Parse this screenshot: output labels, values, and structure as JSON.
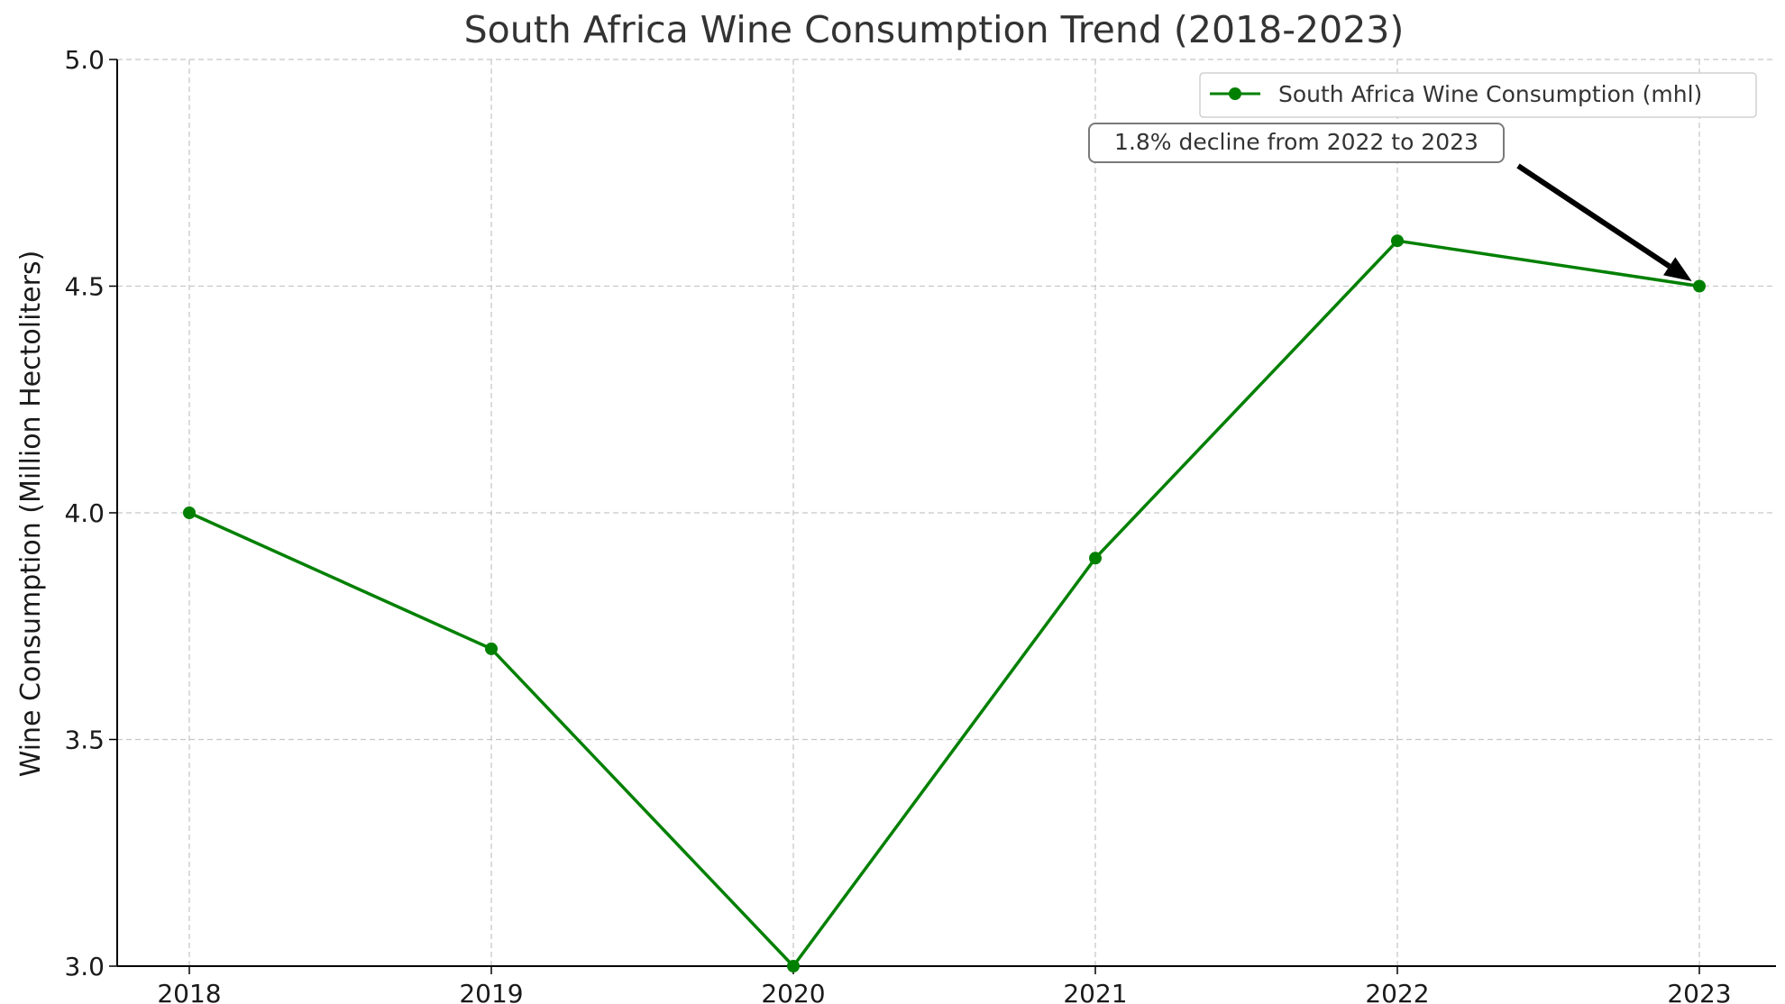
{
  "chart_data": {
    "type": "line",
    "title": "South Africa Wine Consumption Trend (2018-2023)",
    "xlabel": "",
    "ylabel": "Wine Consumption (Million Hectoliters)",
    "x": [
      "2018",
      "2019",
      "2020",
      "2021",
      "2022",
      "2023"
    ],
    "series": [
      {
        "name": "South Africa Wine Consumption (mhl)",
        "values": [
          4.0,
          3.7,
          3.0,
          3.9,
          4.6,
          4.5
        ],
        "color": "#008000",
        "marker": "circle"
      }
    ],
    "ylim": [
      3.0,
      5.0
    ],
    "yticks": [
      "3.0",
      "3.5",
      "4.0",
      "4.5",
      "5.0"
    ],
    "grid": true,
    "legend_position": "top-right",
    "annotation": {
      "text": "1.8% decline from 2022 to 2023",
      "target_x": "2023",
      "target_y": 4.5
    }
  }
}
